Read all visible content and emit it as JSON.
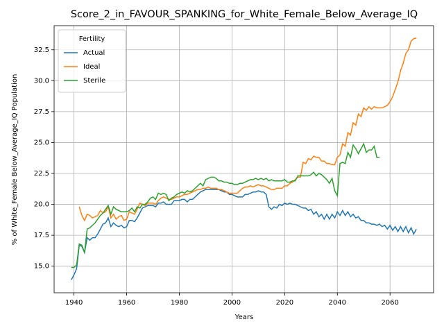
{
  "chart_data": {
    "type": "line",
    "title": "Score_2_in_FAVOUR_SPANKING_for_White_Female_Below_Average_IQ",
    "xlabel": "Years",
    "ylabel": "% of White_Female Below_Average_IQ Population",
    "legend_title": "Fertility",
    "legend": "upper left",
    "grid": true,
    "xlim": [
      1932.45,
      2076.55
    ],
    "ylim": [
      12.85,
      34.45
    ],
    "xticks": [
      1940,
      1960,
      1980,
      2000,
      2020,
      2040,
      2060
    ],
    "yticks": [
      {
        "value": 15,
        "label": "15.0"
      },
      {
        "value": 17.5,
        "label": "17.5"
      },
      {
        "value": 20,
        "label": "20.0"
      },
      {
        "value": 22.5,
        "label": "22.5"
      },
      {
        "value": 25,
        "label": "25.0"
      },
      {
        "value": 27.5,
        "label": "27.5"
      },
      {
        "value": 30,
        "label": "30.0"
      },
      {
        "value": 32.5,
        "label": "32.5"
      }
    ],
    "x": [
      1939,
      1940,
      1941,
      1942,
      1943,
      1944,
      1945,
      1946,
      1947,
      1948,
      1949,
      1950,
      1951,
      1952,
      1953,
      1954,
      1955,
      1956,
      1957,
      1958,
      1959,
      1960,
      1961,
      1962,
      1963,
      1964,
      1965,
      1966,
      1967,
      1968,
      1969,
      1970,
      1971,
      1972,
      1973,
      1974,
      1975,
      1976,
      1977,
      1978,
      1979,
      1980,
      1981,
      1982,
      1983,
      1984,
      1985,
      1986,
      1987,
      1988,
      1989,
      1990,
      1991,
      1992,
      1993,
      1994,
      1995,
      1996,
      1997,
      1998,
      1999,
      2000,
      2001,
      2002,
      2003,
      2004,
      2005,
      2006,
      2007,
      2008,
      2009,
      2010,
      2011,
      2012,
      2013,
      2014,
      2015,
      2016,
      2017,
      2018,
      2019,
      2020,
      2021,
      2022,
      2023,
      2024,
      2025,
      2026,
      2027,
      2028,
      2029,
      2030,
      2031,
      2032,
      2033,
      2034,
      2035,
      2036,
      2037,
      2038,
      2039,
      2040,
      2041,
      2042,
      2043,
      2044,
      2045,
      2046,
      2047,
      2048,
      2049,
      2050,
      2051,
      2052,
      2053,
      2054,
      2055,
      2056,
      2057,
      2058,
      2059,
      2060,
      2061,
      2062,
      2063,
      2064,
      2065,
      2066,
      2067,
      2068,
      2069,
      2070
    ],
    "series": [
      {
        "name": "Actual",
        "color": "#1f77b4",
        "values": [
          13.9,
          14.3,
          14.8,
          16.7,
          16.6,
          16.1,
          17.3,
          17.1,
          17.3,
          17.3,
          17.6,
          18.0,
          18.4,
          18.5,
          18.9,
          18.2,
          18.5,
          18.3,
          18.2,
          18.3,
          18.1,
          18.2,
          18.7,
          18.7,
          18.6,
          18.9,
          19.3,
          19.7,
          19.8,
          19.9,
          19.9,
          19.9,
          19.8,
          20.1,
          20.1,
          20.2,
          20.0,
          20.0,
          20.0,
          20.3,
          20.3,
          20.3,
          20.4,
          20.4,
          20.2,
          20.4,
          20.4,
          20.6,
          20.8,
          21.0,
          21.1,
          21.2,
          21.2,
          21.2,
          21.2,
          21.2,
          21.2,
          21.1,
          21.0,
          21.0,
          20.8,
          20.8,
          20.7,
          20.6,
          20.6,
          20.6,
          20.8,
          20.8,
          20.9,
          21.0,
          21.0,
          21.1,
          21.0,
          21.0,
          20.8,
          19.8,
          19.6,
          19.8,
          19.7,
          20.0,
          19.9,
          20.1,
          20.0,
          20.1,
          20.0,
          20.0,
          19.9,
          19.8,
          19.7,
          19.7,
          19.5,
          19.6,
          19.2,
          19.4,
          19.0,
          19.2,
          18.8,
          19.2,
          18.8,
          19.2,
          18.9,
          19.4,
          19.1,
          19.5,
          19.1,
          19.4,
          19.0,
          19.2,
          18.9,
          19.0,
          18.7,
          18.7,
          18.5,
          18.5,
          18.4,
          18.4,
          18.3,
          18.4,
          18.2,
          18.3,
          18.0,
          18.3,
          17.9,
          18.2,
          17.8,
          18.2,
          17.8,
          18.2,
          17.7,
          18.1,
          17.6,
          18.0
        ]
      },
      {
        "name": "Ideal",
        "color": "#ff7f0e",
        "values": [
          null,
          null,
          null,
          19.8,
          19.1,
          18.7,
          19.2,
          19.1,
          18.9,
          19.0,
          19.1,
          19.5,
          19.3,
          19.4,
          19.8,
          18.9,
          19.2,
          18.8,
          19.0,
          19.1,
          18.7,
          18.8,
          19.4,
          19.3,
          19.2,
          19.6,
          20.1,
          20.0,
          19.9,
          20.1,
          20.1,
          20.1,
          20.0,
          20.3,
          20.5,
          20.6,
          20.5,
          20.4,
          20.4,
          20.5,
          20.6,
          20.6,
          20.7,
          20.8,
          20.8,
          20.9,
          21.0,
          21.1,
          21.2,
          21.2,
          21.3,
          21.3,
          21.4,
          21.3,
          21.3,
          21.3,
          21.2,
          21.2,
          21.1,
          21.0,
          20.9,
          20.9,
          20.9,
          20.9,
          21.1,
          21.3,
          21.4,
          21.4,
          21.5,
          21.4,
          21.5,
          21.6,
          21.5,
          21.5,
          21.4,
          21.3,
          21.2,
          21.2,
          21.3,
          21.3,
          21.3,
          21.5,
          21.5,
          21.7,
          21.8,
          22.0,
          22.2,
          22.2,
          23.4,
          23.3,
          23.7,
          23.6,
          23.9,
          23.8,
          23.8,
          23.5,
          23.5,
          23.3,
          23.3,
          23.2,
          23.2,
          23.8,
          24.0,
          24.9,
          24.7,
          25.8,
          25.6,
          26.6,
          26.4,
          27.3,
          27.1,
          27.8,
          27.6,
          27.9,
          27.7,
          27.9,
          27.8,
          27.8,
          27.8,
          27.9,
          28.0,
          28.3,
          28.7,
          29.3,
          29.9,
          30.8,
          31.4,
          32.2,
          32.5,
          33.2,
          33.4,
          33.45
        ]
      },
      {
        "name": "Sterile",
        "color": "#2ca02c",
        "values": [
          14.9,
          14.9,
          15.1,
          16.8,
          16.7,
          16.1,
          18.0,
          18.1,
          18.3,
          18.5,
          18.8,
          19.1,
          19.3,
          19.6,
          19.9,
          19.2,
          19.8,
          19.6,
          19.5,
          19.4,
          19.4,
          19.4,
          19.5,
          19.7,
          19.4,
          19.8,
          19.7,
          20.0,
          20.0,
          20.2,
          20.5,
          20.6,
          20.4,
          20.9,
          20.8,
          20.9,
          20.8,
          20.3,
          20.5,
          20.6,
          20.8,
          20.9,
          21.0,
          20.9,
          21.1,
          21.0,
          21.1,
          21.3,
          21.5,
          21.7,
          21.5,
          22.0,
          22.1,
          22.2,
          22.2,
          22.1,
          21.9,
          21.9,
          21.8,
          21.8,
          21.7,
          21.7,
          21.6,
          21.6,
          21.7,
          21.7,
          21.8,
          21.9,
          22.0,
          22.0,
          22.1,
          22.0,
          22.1,
          22.0,
          22.1,
          21.9,
          22.0,
          21.9,
          21.9,
          21.9,
          21.9,
          22.0,
          21.8,
          21.8,
          21.9,
          21.9,
          22.3,
          22.3,
          22.3,
          22.3,
          22.3,
          22.4,
          22.6,
          22.3,
          22.5,
          22.4,
          22.2,
          22.0,
          21.7,
          22.1,
          21.1,
          20.7,
          23.3,
          23.4,
          23.3,
          24.2,
          23.8,
          24.8,
          24.5,
          24.1,
          24.5,
          24.9,
          24.2,
          24.4,
          24.4,
          24.7,
          23.8,
          23.8,
          null,
          null,
          null,
          null,
          null,
          null,
          null,
          null,
          null,
          null,
          null,
          null,
          null,
          null
        ]
      }
    ]
  }
}
